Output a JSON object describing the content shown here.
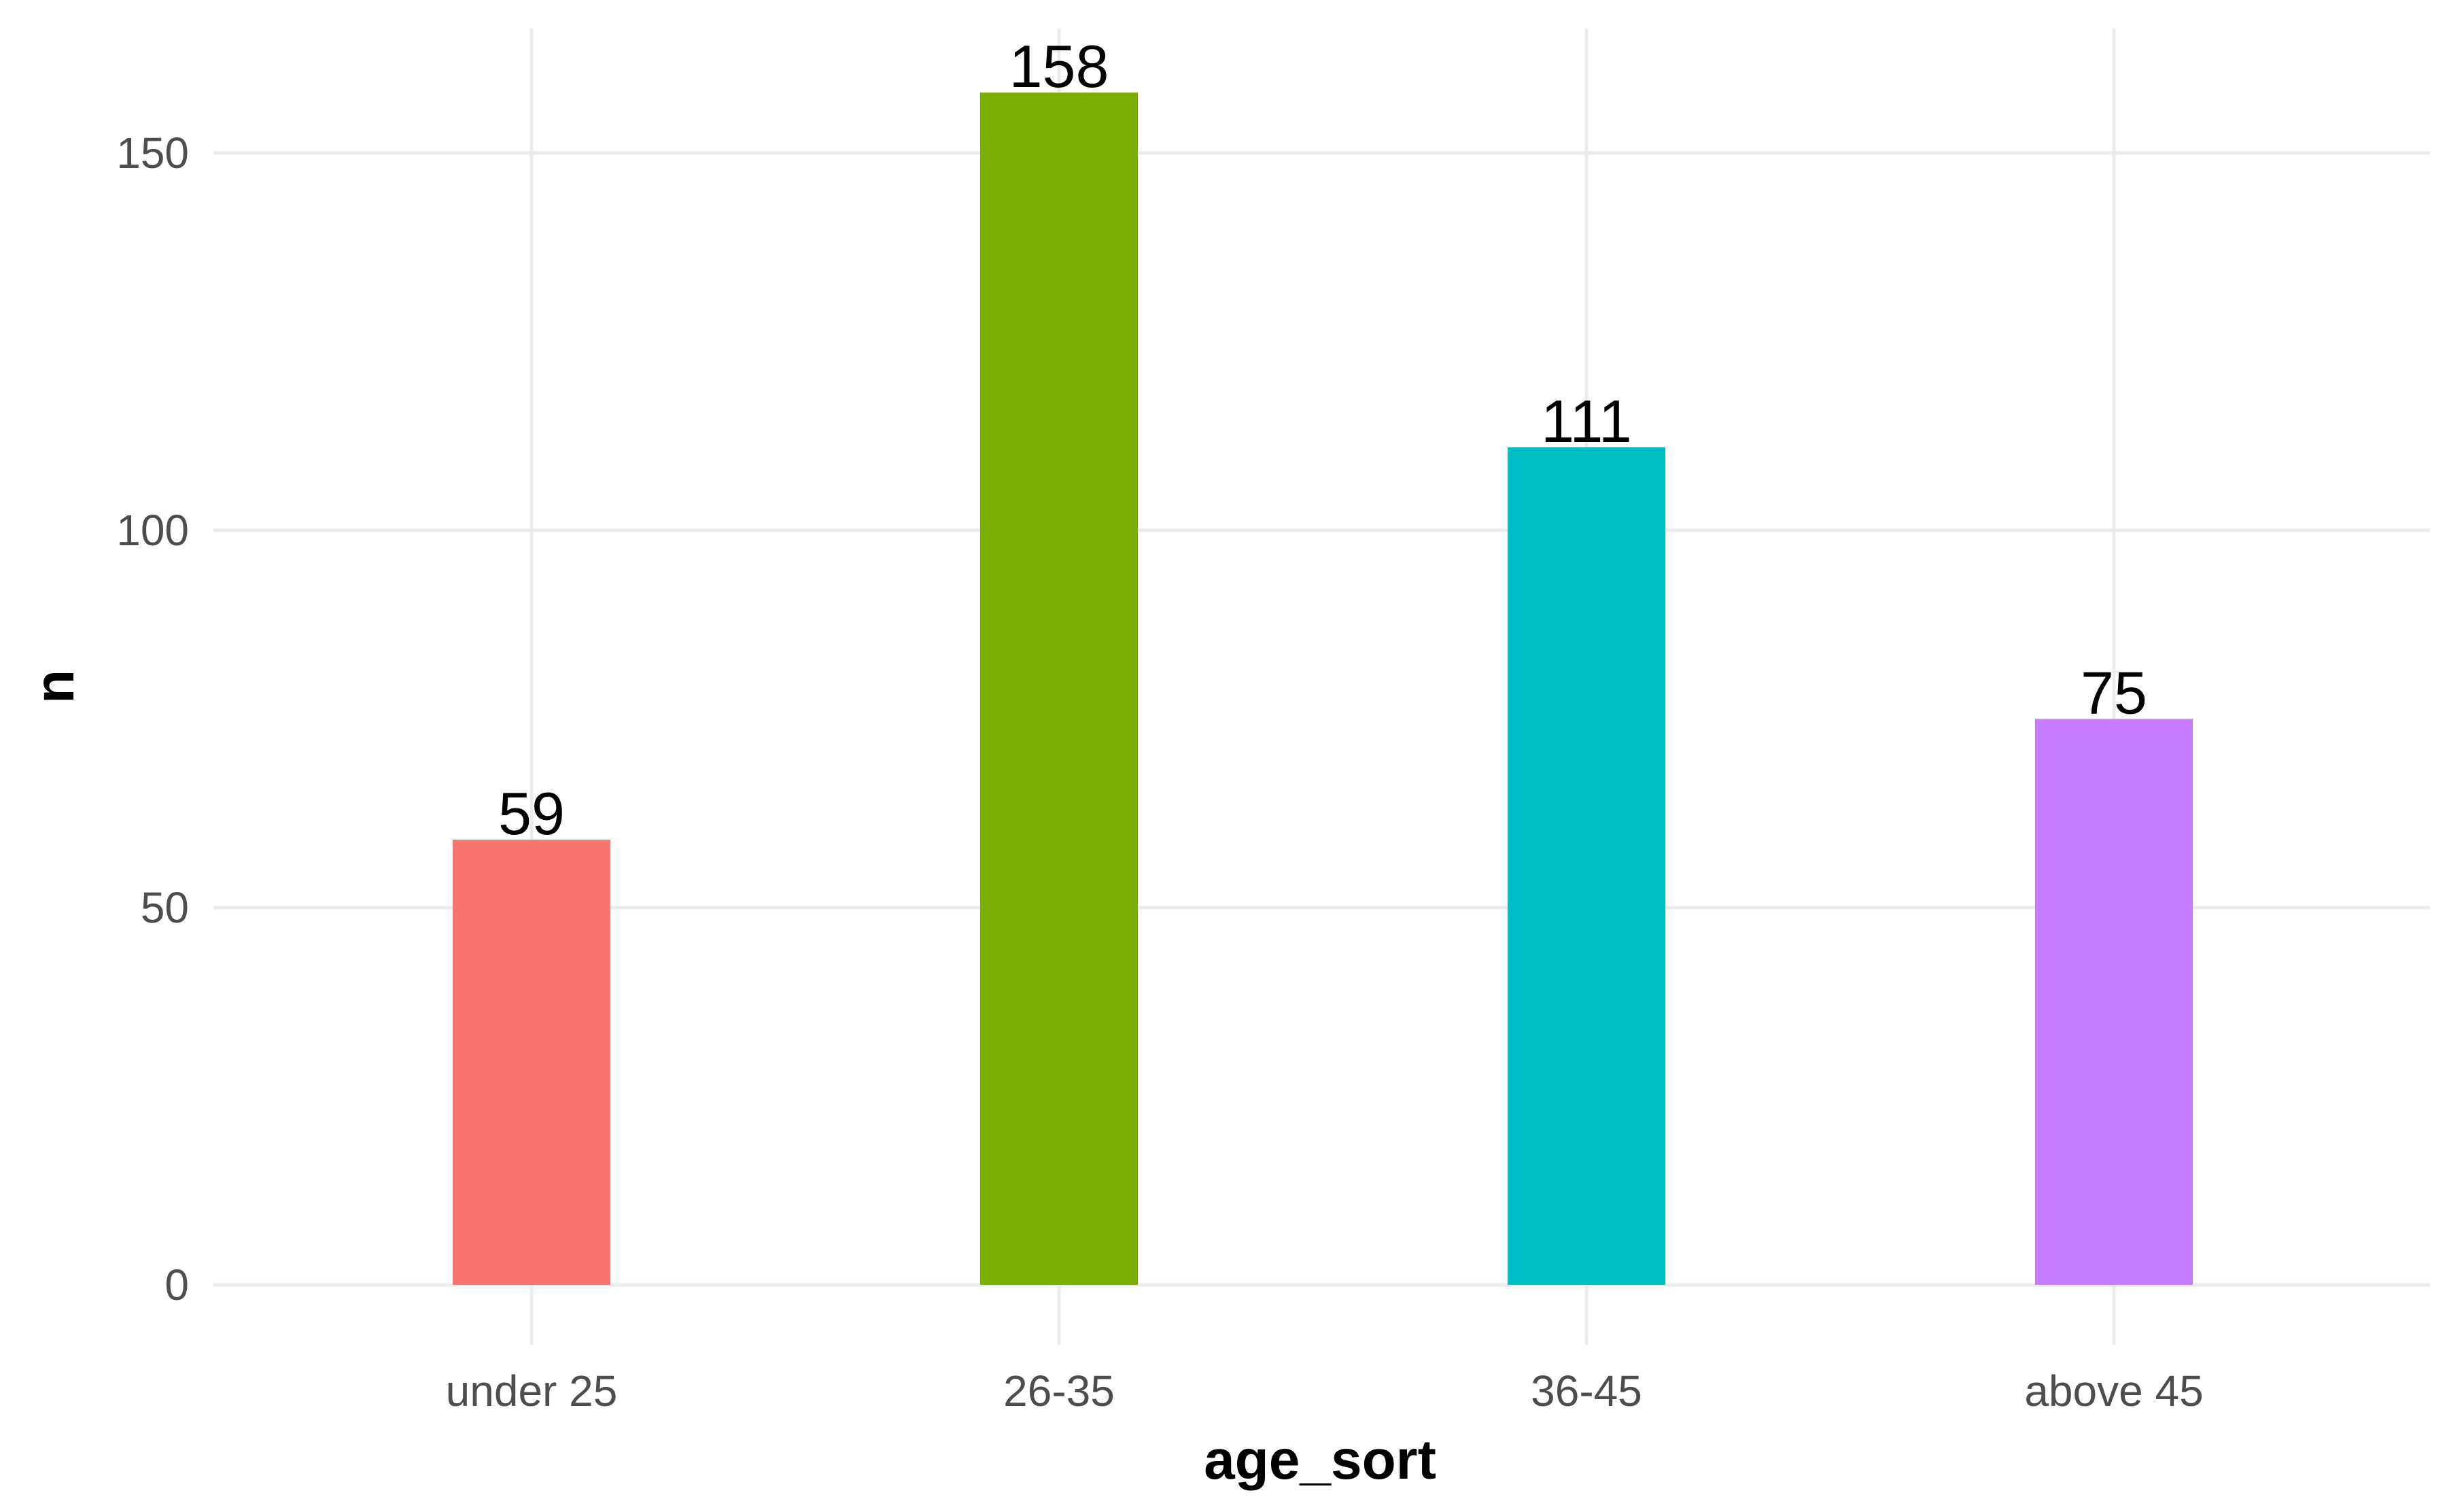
{
  "chart_data": {
    "type": "bar",
    "categories": [
      "under 25",
      "26-35",
      "36-45",
      "above 45"
    ],
    "values": [
      59,
      158,
      111,
      75
    ],
    "colors": [
      "#F8766D",
      "#7CAE00",
      "#00BFC4",
      "#C77CFF"
    ],
    "data_labels": [
      "59",
      "158",
      "111",
      "75"
    ],
    "title": "",
    "xlabel": "age_sort",
    "ylabel": "n",
    "ylim": [
      0,
      166
    ],
    "yticks": [
      0,
      50,
      100,
      150
    ],
    "ytick_labels": [
      "0",
      "50",
      "100",
      "150"
    ],
    "grid": true,
    "legend": "none"
  }
}
